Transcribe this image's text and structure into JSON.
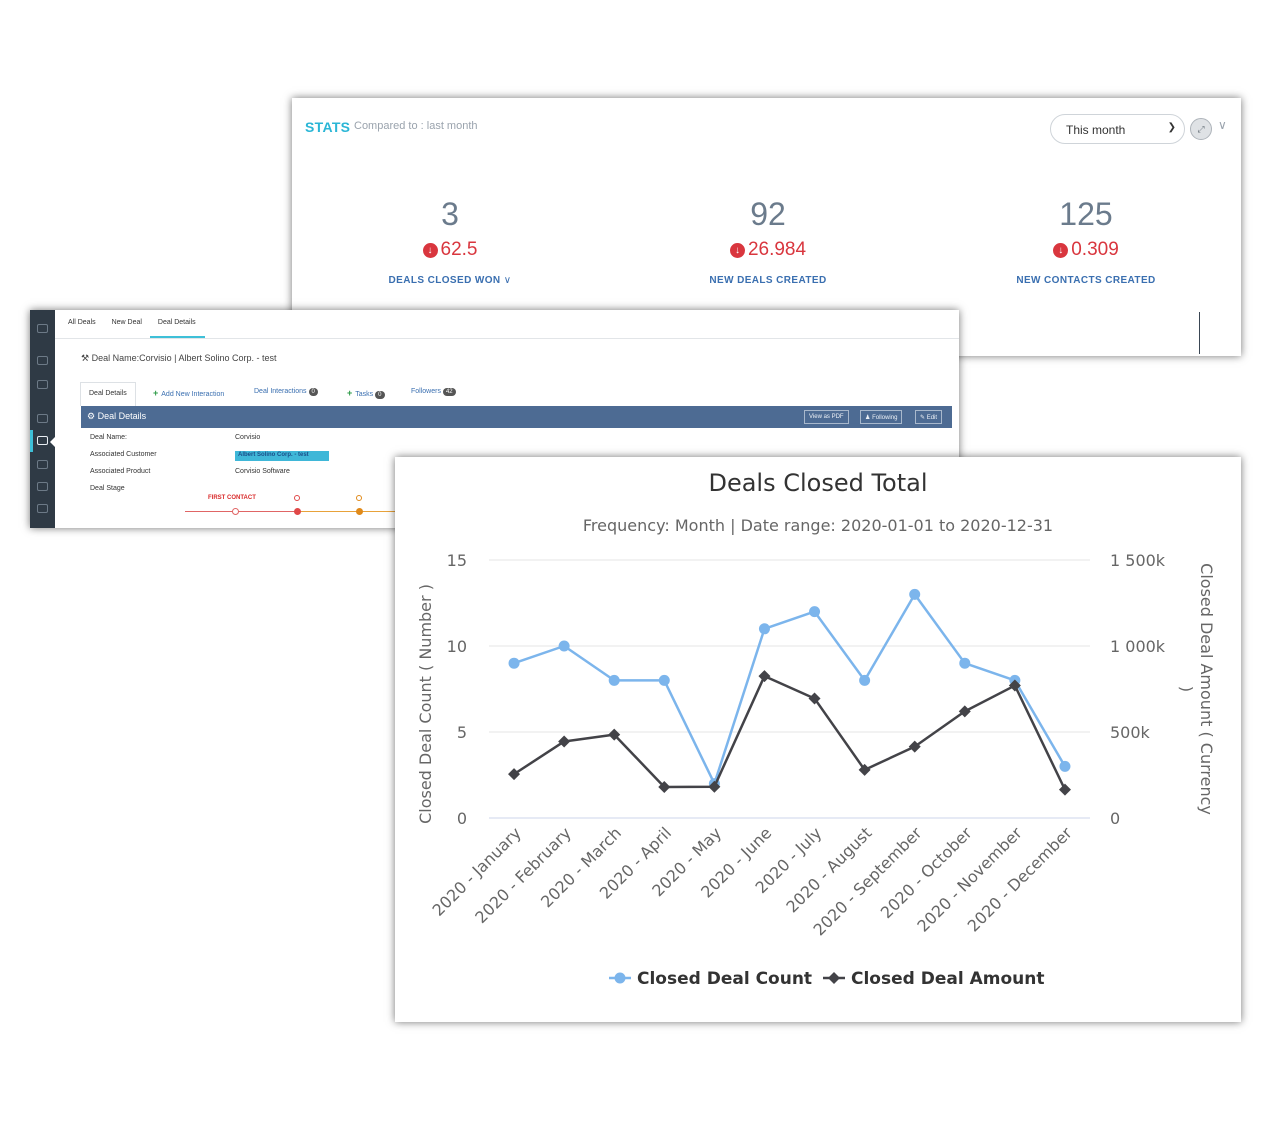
{
  "stats": {
    "title": "STATS",
    "compared_to": "Compared to : last month",
    "period_value": "This month",
    "items": [
      {
        "value": "3",
        "change": "62.5",
        "label": "DEALS CLOSED WON"
      },
      {
        "value": "92",
        "change": "26.984",
        "label": "NEW DEALS CREATED"
      },
      {
        "value": "125",
        "change": "0.309",
        "label": "NEW CONTACTS CREATED"
      }
    ]
  },
  "deal": {
    "top_tabs": [
      "All Deals",
      "New Deal",
      "Deal Details"
    ],
    "deal_name_header": "Deal Name:Corvisio | Albert Solino Corp. - test",
    "sub_tabs": {
      "details": "Deal Details",
      "add_interaction": "Add New Interaction",
      "interactions": "Deal Interactions",
      "interactions_count": "0",
      "tasks": "Tasks",
      "tasks_count": "0",
      "followers": "Followers",
      "followers_count": "42"
    },
    "bar_title": "Deal Details",
    "buttons": {
      "pdf": "View as PDF",
      "following": "Following",
      "edit": "Edit"
    },
    "fields": {
      "name_label": "Deal Name:",
      "name_value": "Corvisio",
      "customer_label": "Associated Customer",
      "customer_value": "Albert Solino Corp. - test",
      "product_label": "Associated Product",
      "product_value": "Corvisio Software",
      "stage_label": "Deal Stage"
    },
    "stage_current": "FIRST CONTACT",
    "colors": {
      "stage1": "#e06565",
      "stage2": "#e8a23a"
    }
  },
  "chart_data": {
    "type": "line",
    "title": "Deals Closed Total",
    "subtitle": "Frequency: Month | Date range: 2020-01-01 to 2020-12-31",
    "categories": [
      "2020 - January",
      "2020 - February",
      "2020 - March",
      "2020 - April",
      "2020 - May",
      "2020 - June",
      "2020 - July",
      "2020 - August",
      "2020 - September",
      "2020 - October",
      "2020 - November",
      "2020 - December"
    ],
    "ylabel": "Closed Deal Count ( Number )",
    "y2label": "Closed Deal Amount ( Currency )",
    "ylim": [
      0,
      15
    ],
    "y2lim": [
      0,
      1500000
    ],
    "yticks": [
      "0",
      "5",
      "10",
      "15"
    ],
    "y2ticks": [
      "0",
      "500k",
      "1 000k",
      "1 500k"
    ],
    "grid": true,
    "legend_position": "bottom",
    "series": [
      {
        "name": "Closed Deal Count",
        "axis": "left",
        "color": "#7cb5ec",
        "marker": "circle",
        "values": [
          9,
          10,
          8,
          8,
          2,
          11,
          12,
          8,
          13,
          9,
          8,
          3
        ]
      },
      {
        "name": "Closed Deal Amount",
        "axis": "right",
        "color": "#434348",
        "marker": "diamond",
        "values": [
          255000,
          445000,
          485000,
          180000,
          182000,
          825000,
          695000,
          280000,
          415000,
          620000,
          770000,
          165000
        ]
      }
    ]
  }
}
